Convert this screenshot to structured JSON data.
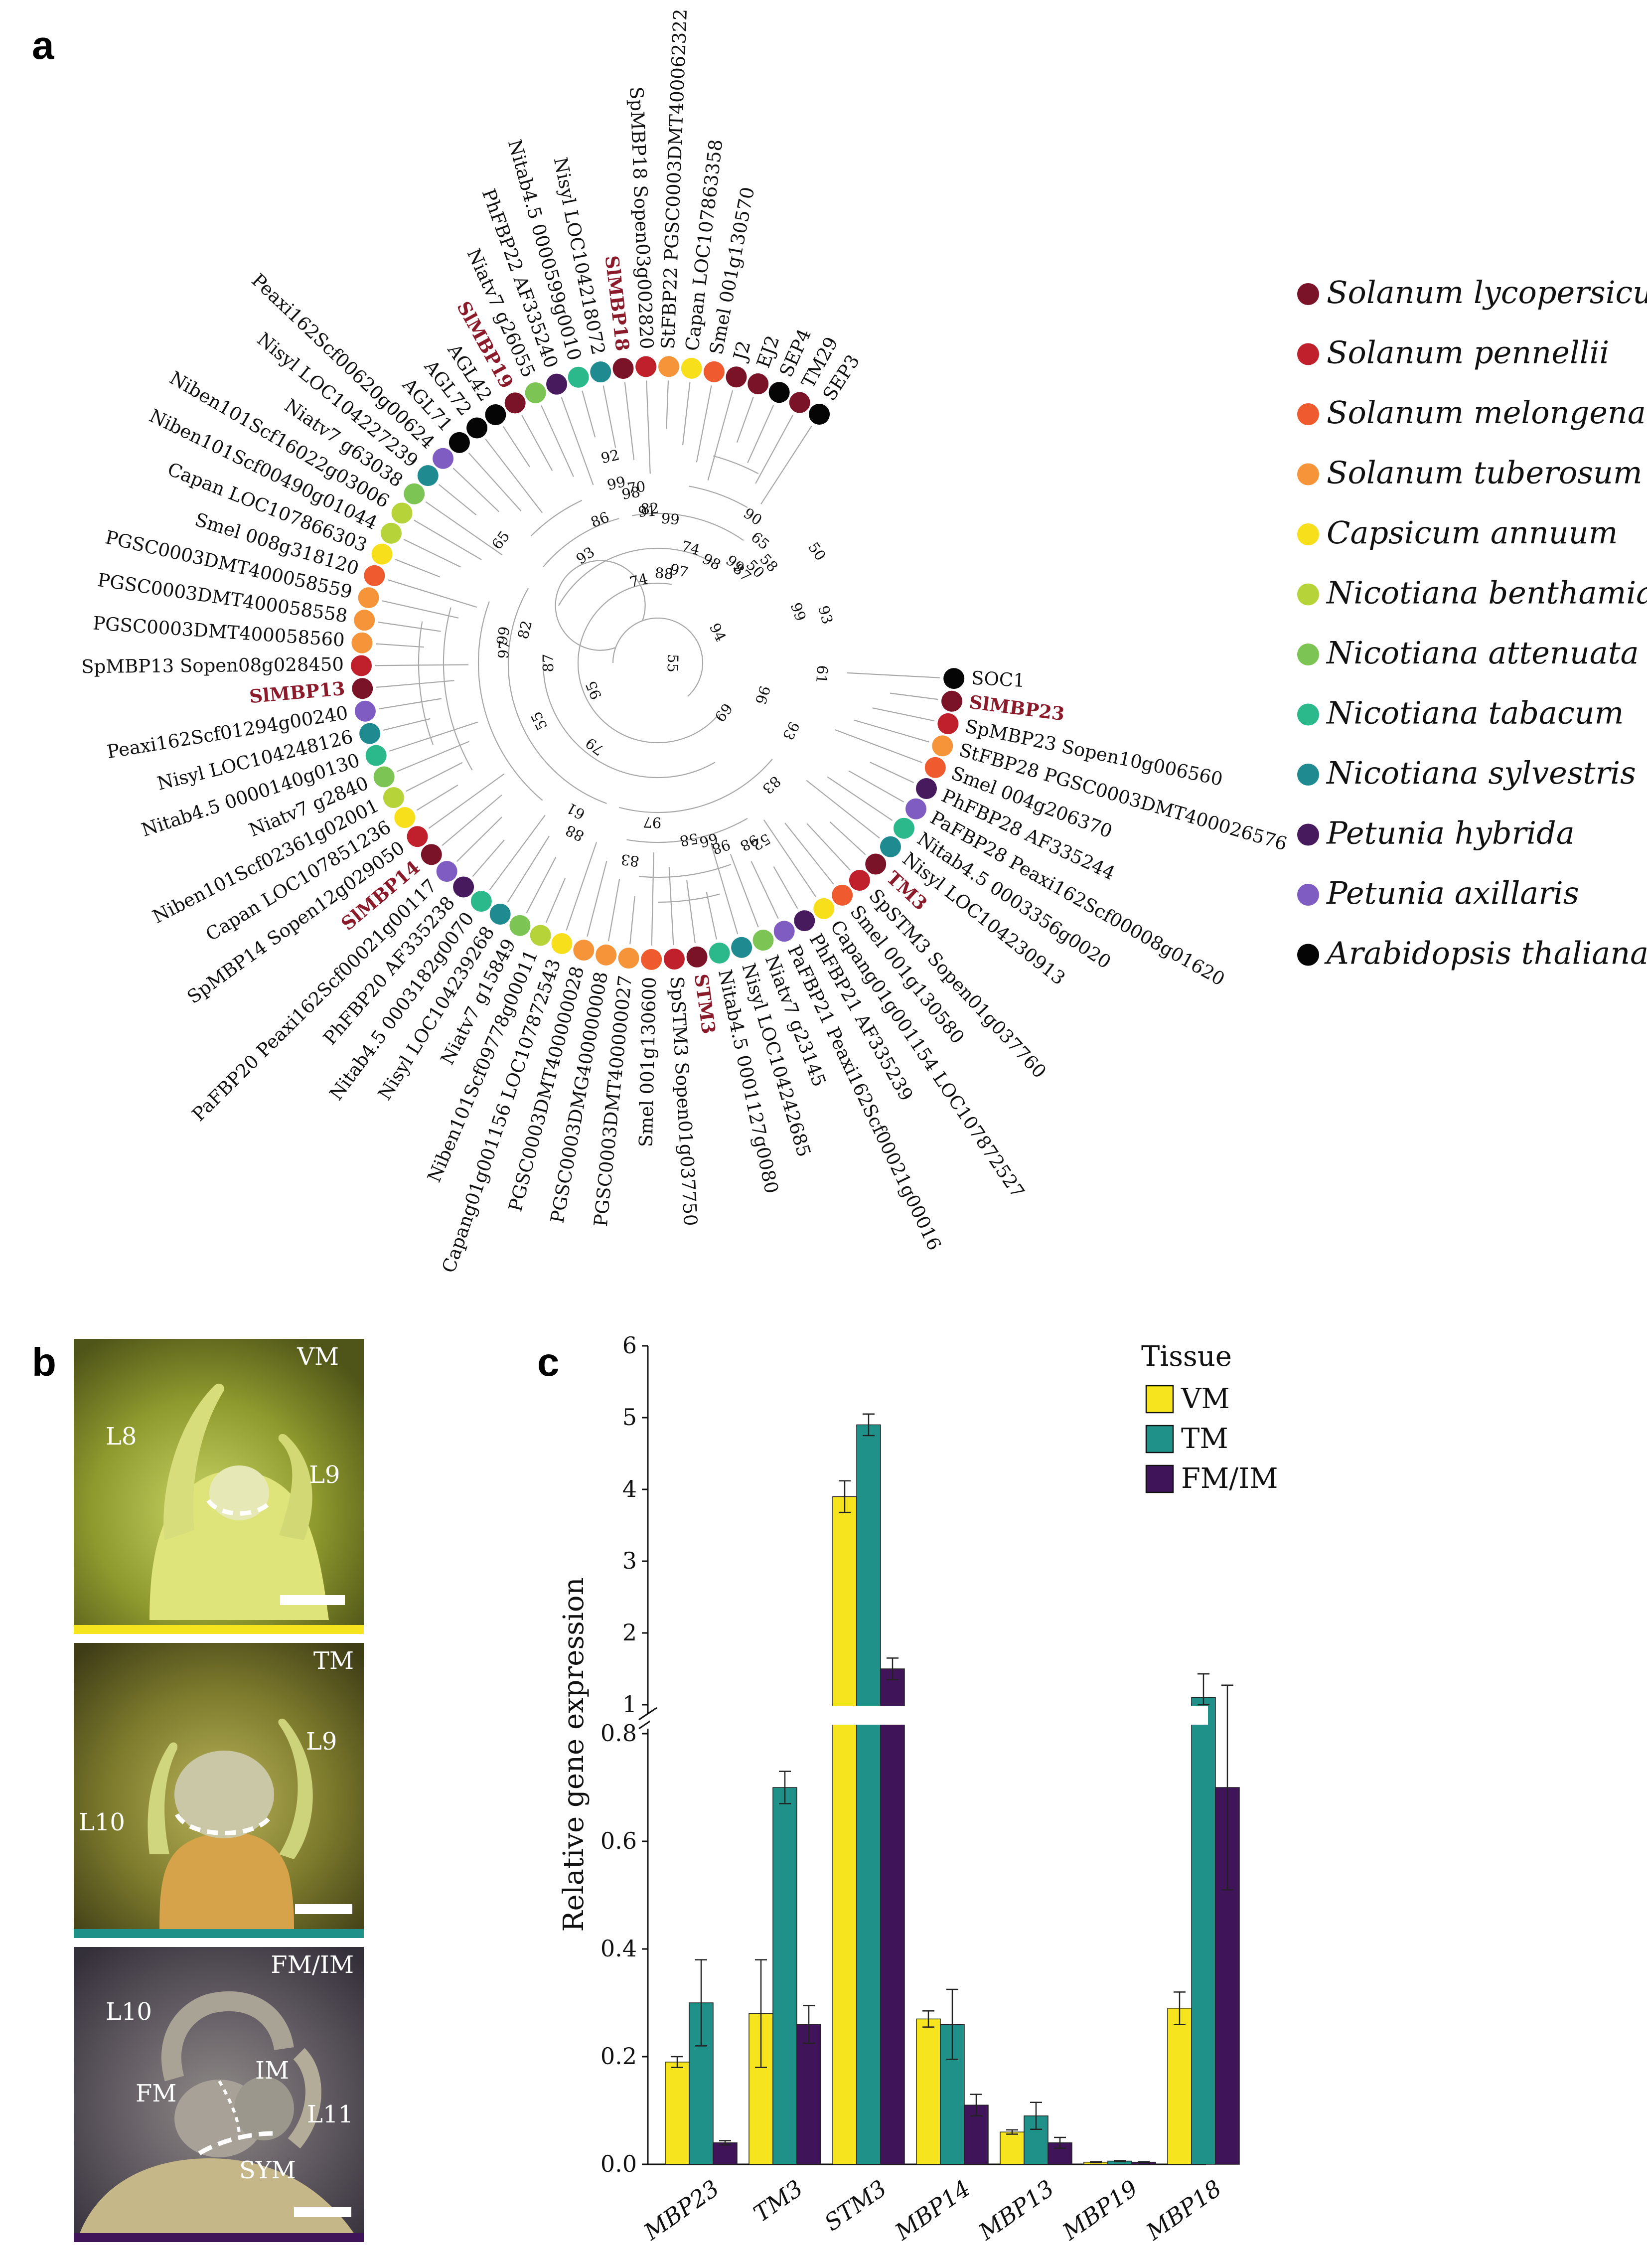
{
  "panels": {
    "a": "a",
    "b": "b",
    "c": "c"
  },
  "colors": {
    "S_lycopersicum": "#7a1228",
    "S_pennellii": "#c0202b",
    "S_melongena": "#ef5a2e",
    "S_tuberosum": "#f6943a",
    "C_annuum": "#f7df1c",
    "N_benthamiana": "#b6d33a",
    "N_attenuata": "#7cc453",
    "N_tabacum": "#2bb98c",
    "N_sylvestris": "#1f8a8f",
    "P_hybrida": "#471a5e",
    "P_axillaris": "#7f5cc1",
    "A_thaliana": "#050505",
    "VM": "#f6e51e",
    "TM": "#1f9189",
    "FMIM": "#3f1458"
  },
  "tree": {
    "leaves": [
      {
        "label": "SEP3",
        "species": "A_thaliana",
        "hi": false
      },
      {
        "label": "TM29",
        "species": "S_lycopersicum",
        "hi": false
      },
      {
        "label": "SEP4",
        "species": "A_thaliana",
        "hi": false
      },
      {
        "label": "EJ2",
        "species": "S_lycopersicum",
        "hi": false
      },
      {
        "label": "J2",
        "species": "S_lycopersicum",
        "hi": false
      },
      {
        "label": "Smel 001g130570",
        "species": "S_melongena",
        "hi": false
      },
      {
        "label": "Capan LOC107863358",
        "species": "C_annuum",
        "hi": false
      },
      {
        "label": "StFBP22 PGSC0003DMT400062322",
        "species": "S_tuberosum",
        "hi": false
      },
      {
        "label": "SpMBP18 Sopen03g002820",
        "species": "S_pennellii",
        "hi": false
      },
      {
        "label": "SlMBP18",
        "species": "S_lycopersicum",
        "hi": true
      },
      {
        "label": "Nisyl LOC104218072",
        "species": "N_sylvestris",
        "hi": false
      },
      {
        "label": "Nitab4.5 0000599g0010",
        "species": "N_tabacum",
        "hi": false
      },
      {
        "label": "PhFBP22 AF335240",
        "species": "P_hybrida",
        "hi": false
      },
      {
        "label": "Niatv7 g26055",
        "species": "N_attenuata",
        "hi": false
      },
      {
        "label": "SlMBP19",
        "species": "S_lycopersicum",
        "hi": true
      },
      {
        "label": "AGL42",
        "species": "A_thaliana",
        "hi": false
      },
      {
        "label": "AGL72",
        "species": "A_thaliana",
        "hi": false
      },
      {
        "label": "AGL71",
        "species": "A_thaliana",
        "hi": false
      },
      {
        "label": "Peaxi162Scf00620g00624",
        "species": "P_axillaris",
        "hi": false
      },
      {
        "label": "Nisyl LOC104227239",
        "species": "N_sylvestris",
        "hi": false
      },
      {
        "label": "Niatv7 g63038",
        "species": "N_attenuata",
        "hi": false
      },
      {
        "label": "Niben101Scf16022g03006",
        "species": "N_benthamiana",
        "hi": false
      },
      {
        "label": "Niben101Scf00490g01044",
        "species": "N_benthamiana",
        "hi": false
      },
      {
        "label": "Capan LOC107866303",
        "species": "C_annuum",
        "hi": false
      },
      {
        "label": "Smel 008g318120",
        "species": "S_melongena",
        "hi": false
      },
      {
        "label": "PGSC0003DMT400058559",
        "species": "S_tuberosum",
        "hi": false
      },
      {
        "label": "PGSC0003DMT400058558",
        "species": "S_tuberosum",
        "hi": false
      },
      {
        "label": "PGSC0003DMT400058560",
        "species": "S_tuberosum",
        "hi": false
      },
      {
        "label": "SpMBP13 Sopen08g028450",
        "species": "S_pennellii",
        "hi": false
      },
      {
        "label": "SlMBP13",
        "species": "S_lycopersicum",
        "hi": true
      },
      {
        "label": "Peaxi162Scf01294g00240",
        "species": "P_axillaris",
        "hi": false
      },
      {
        "label": "Nisyl LOC104248126",
        "species": "N_sylvestris",
        "hi": false
      },
      {
        "label": "Nitab4.5 0000140g0130",
        "species": "N_tabacum",
        "hi": false
      },
      {
        "label": "Niatv7 g2840",
        "species": "N_attenuata",
        "hi": false
      },
      {
        "label": "Niben101Scf02361g02001",
        "species": "N_benthamiana",
        "hi": false
      },
      {
        "label": "Capan LOC107851236",
        "species": "C_annuum",
        "hi": false
      },
      {
        "label": "SpMBP14 Sopen12g029050",
        "species": "S_pennellii",
        "hi": false
      },
      {
        "label": "SlMBP14",
        "species": "S_lycopersicum",
        "hi": true
      },
      {
        "label": "PaFBP20 Peaxi162Scf00021g00117",
        "species": "P_axillaris",
        "hi": false
      },
      {
        "label": "PhFBP20 AF335238",
        "species": "P_hybrida",
        "hi": false
      },
      {
        "label": "Nitab4.5 0003182g0070",
        "species": "N_tabacum",
        "hi": false
      },
      {
        "label": "Nisyl LOC104239268",
        "species": "N_sylvestris",
        "hi": false
      },
      {
        "label": "Niatv7 g15849",
        "species": "N_attenuata",
        "hi": false
      },
      {
        "label": "Niben101Scf09778g00011",
        "species": "N_benthamiana",
        "hi": false
      },
      {
        "label": "Capang01g001156 LOC107872543",
        "species": "C_annuum",
        "hi": false
      },
      {
        "label": "PGSC0003DMT400000028",
        "species": "S_tuberosum",
        "hi": false
      },
      {
        "label": "PGSC0003DMG400000008",
        "species": "S_tuberosum",
        "hi": false
      },
      {
        "label": "PGSC0003DMT400000027",
        "species": "S_tuberosum",
        "hi": false
      },
      {
        "label": "Smel 001g130600",
        "species": "S_melongena",
        "hi": false
      },
      {
        "label": "SpSTM3 Sopen01g037750",
        "species": "S_pennellii",
        "hi": false
      },
      {
        "label": "STM3",
        "species": "S_lycopersicum",
        "hi": true
      },
      {
        "label": "Nitab4.5 0001127g0080",
        "species": "N_tabacum",
        "hi": false
      },
      {
        "label": "Nisyl LOC104242685",
        "species": "N_sylvestris",
        "hi": false
      },
      {
        "label": "Niatv7 g23145",
        "species": "N_attenuata",
        "hi": false
      },
      {
        "label": "PaFBP21 Peaxi162Scf00021g00016",
        "species": "P_axillaris",
        "hi": false
      },
      {
        "label": "PhFBP21 AF335239",
        "species": "P_hybrida",
        "hi": false
      },
      {
        "label": "Capang01g001154 LOC107872527",
        "species": "C_annuum",
        "hi": false
      },
      {
        "label": "Smel 001g130580",
        "species": "S_melongena",
        "hi": false
      },
      {
        "label": "SpSTM3 Sopen01g037760",
        "species": "S_pennellii",
        "hi": false
      },
      {
        "label": "TM3",
        "species": "S_lycopersicum",
        "hi": true
      },
      {
        "label": "Nisyl LOC104230913",
        "species": "N_sylvestris",
        "hi": false
      },
      {
        "label": "Nitab4.5 0003356g0020",
        "species": "N_tabacum",
        "hi": false
      },
      {
        "label": "PaFBP28 Peaxi162Scf00008g01620",
        "species": "P_axillaris",
        "hi": false
      },
      {
        "label": "PhFBP28 AF335244",
        "species": "P_hybrida",
        "hi": false
      },
      {
        "label": "Smel 004g206370",
        "species": "S_melongena",
        "hi": false
      },
      {
        "label": "StFBP28 PGSC0003DMT400026576",
        "species": "S_tuberosum",
        "hi": false
      },
      {
        "label": "SpMBP23 Sopen10g006560",
        "species": "S_pennellii",
        "hi": false
      },
      {
        "label": "SlMBP23",
        "species": "S_lycopersicum",
        "hi": true
      },
      {
        "label": "SOC1",
        "species": "A_thaliana",
        "hi": false
      }
    ],
    "bootstraps": [
      {
        "v": "58",
        "a": -42,
        "r": 290
      },
      {
        "v": "50",
        "a": -44,
        "r": 262
      },
      {
        "v": "87",
        "a": -47,
        "r": 238
      },
      {
        "v": "99",
        "a": -52,
        "r": 242
      },
      {
        "v": "98",
        "a": -62,
        "r": 220
      },
      {
        "v": "74",
        "a": -74,
        "r": 230
      },
      {
        "v": "97",
        "a": -77,
        "r": 180
      },
      {
        "v": "82",
        "a": -93,
        "r": 300
      },
      {
        "v": "70",
        "a": -97,
        "r": 345
      },
      {
        "v": "74",
        "a": -103,
        "r": 160
      },
      {
        "v": "86",
        "a": -112,
        "r": 300
      },
      {
        "v": "93",
        "a": -124,
        "r": 250
      },
      {
        "v": "65",
        "a": -142,
        "r": 390
      },
      {
        "v": "82",
        "a": -166,
        "r": 265
      },
      {
        "v": "99",
        "a": -170,
        "r": 305
      },
      {
        "v": "97",
        "a": -175,
        "r": 300
      },
      {
        "v": "87",
        "a": -180,
        "r": 210
      },
      {
        "v": "95",
        "a": -203,
        "r": 130
      },
      {
        "v": "55",
        "a": -206,
        "r": 255
      },
      {
        "v": "79",
        "a": -233,
        "r": 200
      },
      {
        "v": "61",
        "a": -241,
        "r": 330
      },
      {
        "v": "88",
        "a": -244,
        "r": 370
      },
      {
        "v": "83",
        "a": -262,
        "r": 390
      },
      {
        "v": "97",
        "a": -268,
        "r": 310
      },
      {
        "v": "58",
        "a": -280,
        "r": 350
      },
      {
        "v": "66",
        "a": -286,
        "r": 360
      },
      {
        "v": "98",
        "a": -289,
        "r": 380
      },
      {
        "v": "98",
        "a": -297,
        "r": 395
      },
      {
        "v": "52",
        "a": -300,
        "r": 405
      },
      {
        "v": "83",
        "a": -313,
        "r": 325
      },
      {
        "v": "69",
        "a": -323,
        "r": 155
      },
      {
        "v": "93",
        "a": -333,
        "r": 290
      },
      {
        "v": "96",
        "a": -343,
        "r": 210
      },
      {
        "v": "61",
        "a": -356,
        "r": 320
      },
      {
        "v": "55",
        "a": -359,
        "r": 20
      },
      {
        "v": "93",
        "a": -16,
        "r": 340
      },
      {
        "v": "94",
        "a": -27,
        "r": 125
      },
      {
        "v": "99",
        "a": -20,
        "r": 290
      },
      {
        "v": "50",
        "a": -35,
        "r": 380
      },
      {
        "v": "65",
        "a": -50,
        "r": 310
      },
      {
        "v": "90",
        "a": -57,
        "r": 340
      },
      {
        "v": "88",
        "a": -86,
        "r": 170
      },
      {
        "v": "91",
        "a": -94,
        "r": 295
      },
      {
        "v": "99",
        "a": -85,
        "r": 280
      },
      {
        "v": "98",
        "a": -99,
        "r": 335
      },
      {
        "v": "99",
        "a": -103,
        "r": 360
      },
      {
        "v": "92",
        "a": -103,
        "r": 415
      }
    ]
  },
  "legend_a": [
    {
      "species": "S_lycopersicum",
      "label": "Solanum lycopersicum"
    },
    {
      "species": "S_pennellii",
      "label": "Solanum pennellii"
    },
    {
      "species": "S_melongena",
      "label": "Solanum melongena"
    },
    {
      "species": "S_tuberosum",
      "label": "Solanum tuberosum"
    },
    {
      "species": "C_annuum",
      "label": "Capsicum annuum"
    },
    {
      "species": "N_benthamiana",
      "label": "Nicotiana benthamiana"
    },
    {
      "species": "N_attenuata",
      "label": "Nicotiana attenuata"
    },
    {
      "species": "N_tabacum",
      "label": "Nicotiana tabacum"
    },
    {
      "species": "N_sylvestris",
      "label": "Nicotiana sylvestris"
    },
    {
      "species": "P_hybrida",
      "label": "Petunia hybrida"
    },
    {
      "species": "P_axillaris",
      "label": "Petunia axillaris"
    },
    {
      "species": "A_thaliana",
      "label": "Arabidopsis thaliana"
    }
  ],
  "micrographs": [
    {
      "title": "VM",
      "labels": [
        "L8",
        "L9"
      ],
      "bar": "VM"
    },
    {
      "title": "TM",
      "labels": [
        "L9",
        "L10"
      ],
      "bar": "TM"
    },
    {
      "title": "FM/IM",
      "labels": [
        "L10",
        "IM",
        "FM",
        "L11",
        "SYM"
      ],
      "bar": "FMIM"
    }
  ],
  "chart_data": {
    "type": "bar",
    "ylabel": "Relative gene expression",
    "categories": [
      "MBP23",
      "TM3",
      "STM3",
      "MBP14",
      "MBP13",
      "MBP19",
      "MBP18"
    ],
    "legend_title": "Tissue",
    "series": [
      {
        "name": "VM",
        "values": [
          0.19,
          0.28,
          3.9,
          0.27,
          0.06,
          0.004,
          0.29
        ],
        "err": [
          0.01,
          0.1,
          0.22,
          0.015,
          0.004,
          0.001,
          0.03
        ]
      },
      {
        "name": "TM",
        "values": [
          0.3,
          0.7,
          4.9,
          0.26,
          0.09,
          0.006,
          1.1
        ],
        "err": [
          0.08,
          0.03,
          0.15,
          0.065,
          0.025,
          0.001,
          0.33
        ]
      },
      {
        "name": "FM/IM",
        "values": [
          0.04,
          0.26,
          1.5,
          0.11,
          0.04,
          0.004,
          0.7
        ],
        "err": [
          0.004,
          0.035,
          0.15,
          0.02,
          0.01,
          0.001,
          0.19
        ]
      }
    ],
    "broken_axis": {
      "lower_ylim": [
        0.0,
        0.8
      ],
      "upper_ylim": [
        1,
        6
      ]
    },
    "lower_ticks": [
      "0.0",
      "0.2",
      "0.4",
      "0.6",
      "0.8"
    ],
    "upper_ticks": [
      "1",
      "2",
      "3",
      "4",
      "5",
      "6"
    ]
  }
}
